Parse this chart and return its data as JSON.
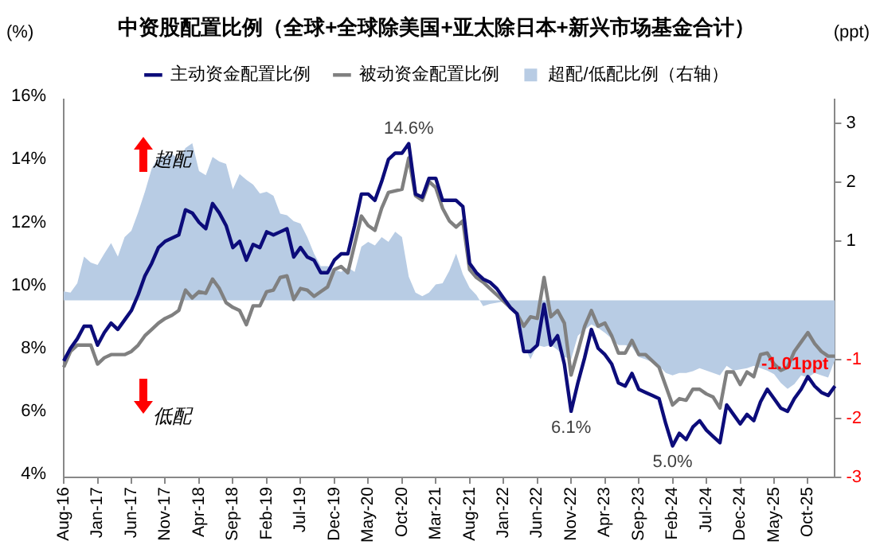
{
  "chart_data": {
    "type": "line",
    "title": "中资股配置比例（全球+全球除美国+亚太除日本+新兴市场基金合计）",
    "ylabel": "(%)",
    "y2label": "(ppt)",
    "categories": [
      "Aug-16",
      null,
      null,
      null,
      null,
      "Jan-17",
      null,
      null,
      null,
      null,
      "Jun-17",
      null,
      null,
      null,
      null,
      "Nov-17",
      null,
      null,
      null,
      null,
      "Apr-18",
      null,
      null,
      null,
      null,
      "Sep-18",
      null,
      null,
      null,
      null,
      "Feb-19",
      null,
      null,
      null,
      null,
      "Jul-19",
      null,
      null,
      null,
      null,
      "Dec-19",
      null,
      null,
      null,
      null,
      "May-20",
      null,
      null,
      null,
      null,
      "Oct-20",
      null,
      null,
      null,
      null,
      "Mar-21",
      null,
      null,
      null,
      null,
      "Aug-21",
      null,
      null,
      null,
      null,
      "Jan-22",
      null,
      null,
      null,
      null,
      "Jun-22",
      null,
      null,
      null,
      null,
      "Nov-22",
      null,
      null,
      null,
      null,
      "Apr-23",
      null,
      null,
      null,
      null,
      "Sep-23",
      null,
      null,
      null,
      null,
      "Feb-24",
      null,
      null,
      null,
      null,
      "Jul-24",
      null,
      null,
      null,
      null,
      "Dec-24",
      null,
      null,
      null,
      null,
      "May-25",
      null,
      null,
      null,
      null,
      "Oct-25",
      null,
      null,
      null,
      null
    ],
    "series": [
      {
        "name": "超配/低配比例（右轴）",
        "type": "area",
        "axis": "y2",
        "color": "#b8cce4",
        "values": [
          0.15,
          0.13,
          0.29,
          0.74,
          0.64,
          0.6,
          0.79,
          0.97,
          0.74,
          1.07,
          1.18,
          1.49,
          1.84,
          2.23,
          2.43,
          2.45,
          2.48,
          2.39,
          2.58,
          2.66,
          2.19,
          2.12,
          2.43,
          2.35,
          2.31,
          1.88,
          2.14,
          2.04,
          1.96,
          1.81,
          1.84,
          1.77,
          1.47,
          1.44,
          1.34,
          1.3,
          1.07,
          0.79,
          0.58,
          0.58,
          0.52,
          0.48,
          0.56,
          0.48,
          0.91,
          0.99,
          0.93,
          1.07,
          0.99,
          1.16,
          1.07,
          0.4,
          0.13,
          0.07,
          0.13,
          0.27,
          0.29,
          0.5,
          0.79,
          0.44,
          0.21,
          0.09,
          -0.1,
          -0.06,
          -0.04,
          -0.02,
          -0.1,
          -0.18,
          -0.76,
          -1.0,
          -0.76,
          -0.79,
          -0.76,
          -0.84,
          -0.96,
          -1.0,
          -0.6,
          -0.5,
          -0.41,
          -0.47,
          -0.55,
          -0.65,
          -0.76,
          -0.76,
          -0.79,
          -0.96,
          -1.0,
          -1.05,
          -1.11,
          -1.23,
          -1.27,
          -1.23,
          -1.23,
          -1.2,
          -1.15,
          -1.19,
          -1.23,
          -1.27,
          -1.11,
          -1.19,
          -1.17,
          -1.15,
          -1.11,
          -1.15,
          -1.19,
          -1.25,
          -1.4,
          -1.5,
          -1.42,
          -1.27,
          -1.31,
          -1.23,
          -1.27,
          -1.31,
          -1.01
        ],
        "value_labels": [
          null,
          null,
          null,
          null,
          null,
          null,
          null,
          null,
          null,
          null,
          null,
          null,
          null,
          null,
          null,
          null,
          null,
          null,
          null,
          null,
          null,
          null,
          null,
          null,
          null,
          null,
          null,
          null,
          null,
          null,
          null,
          null,
          null,
          null,
          null,
          null,
          null,
          null,
          null,
          null,
          null,
          null,
          null,
          null,
          null,
          null,
          null,
          null,
          null,
          null,
          null,
          null,
          null,
          null,
          null,
          null,
          null,
          null,
          null,
          null,
          null,
          null,
          null,
          null,
          null,
          null,
          null,
          null,
          null,
          null,
          null,
          null,
          null,
          null,
          null,
          null,
          null,
          null,
          null,
          null,
          null,
          null,
          null,
          null,
          null,
          null,
          null,
          null,
          null,
          null,
          null,
          null,
          null,
          null,
          null,
          null,
          null,
          null,
          null,
          null,
          null,
          null,
          null,
          null,
          null,
          null,
          null,
          null,
          null,
          null,
          null,
          null,
          null,
          null,
          "-1.01ppt"
        ]
      },
      {
        "name": "主动资金配置比例",
        "type": "line",
        "color": "#0c0c7a",
        "values": [
          7.7,
          8.1,
          8.4,
          8.8,
          8.8,
          8.2,
          8.6,
          8.9,
          8.7,
          9.0,
          9.3,
          9.8,
          10.4,
          10.8,
          11.3,
          11.5,
          11.6,
          11.7,
          12.5,
          12.4,
          12.1,
          11.9,
          12.7,
          12.4,
          12.0,
          11.3,
          11.5,
          10.9,
          11.4,
          11.3,
          11.8,
          11.7,
          11.8,
          11.9,
          11.0,
          11.3,
          11.0,
          10.9,
          10.5,
          10.5,
          10.9,
          11.1,
          11.1,
          12.0,
          13.0,
          13.0,
          12.8,
          13.4,
          14.1,
          14.3,
          14.3,
          14.6,
          13.0,
          12.9,
          13.5,
          13.5,
          12.8,
          12.8,
          12.8,
          12.6,
          10.8,
          10.5,
          10.3,
          10.2,
          10.0,
          9.7,
          9.4,
          9.2,
          8.0,
          8.0,
          8.2,
          9.5,
          8.2,
          8.5,
          7.6,
          6.1,
          7.0,
          7.8,
          8.7,
          8.1,
          7.9,
          7.6,
          7.0,
          6.9,
          7.3,
          6.8,
          6.7,
          6.6,
          6.5,
          5.7,
          5.0,
          5.4,
          5.2,
          5.6,
          5.8,
          5.5,
          5.3,
          5.1,
          6.3,
          6.0,
          5.7,
          6.0,
          5.8,
          6.4,
          6.8,
          6.5,
          6.2,
          6.1,
          6.5,
          6.8,
          7.2,
          6.9,
          6.7,
          6.6,
          6.9
        ],
        "value_labels": [
          null,
          null,
          null,
          null,
          null,
          null,
          null,
          null,
          null,
          null,
          null,
          null,
          null,
          null,
          null,
          null,
          null,
          null,
          null,
          null,
          null,
          null,
          null,
          null,
          null,
          null,
          null,
          null,
          null,
          null,
          null,
          null,
          null,
          null,
          null,
          null,
          null,
          null,
          null,
          null,
          null,
          null,
          null,
          null,
          null,
          null,
          null,
          null,
          null,
          null,
          null,
          "14.6%",
          null,
          null,
          null,
          null,
          null,
          null,
          null,
          null,
          null,
          null,
          null,
          null,
          null,
          null,
          null,
          null,
          null,
          null,
          null,
          null,
          null,
          null,
          null,
          "6.1%",
          null,
          null,
          null,
          null,
          null,
          null,
          null,
          null,
          null,
          null,
          null,
          null,
          null,
          null,
          "5.0%",
          null,
          null,
          null,
          null,
          null,
          null,
          null,
          null,
          null,
          null,
          null,
          null,
          null,
          null,
          null,
          null,
          null,
          null,
          null,
          null,
          null,
          null,
          null,
          null
        ]
      },
      {
        "name": "被动资金配置比例",
        "type": "line",
        "color": "#808080",
        "values": [
          7.5,
          8.0,
          8.2,
          8.2,
          8.2,
          7.6,
          7.8,
          7.9,
          7.9,
          7.9,
          8.0,
          8.2,
          8.5,
          8.7,
          8.9,
          9.05,
          9.15,
          9.3,
          9.95,
          9.7,
          9.9,
          9.85,
          10.3,
          10.0,
          9.55,
          9.4,
          9.3,
          8.85,
          9.45,
          9.45,
          9.9,
          9.95,
          10.35,
          10.4,
          9.65,
          10.0,
          9.95,
          9.75,
          9.9,
          10.05,
          10.6,
          10.7,
          10.5,
          11.4,
          12.3,
          12.0,
          11.85,
          12.55,
          13.05,
          13.1,
          13.15,
          14.15,
          12.95,
          12.8,
          13.4,
          13.2,
          12.55,
          12.15,
          11.95,
          12.15,
          10.6,
          10.35,
          10.2,
          10.0,
          9.8,
          9.6,
          9.4,
          9.2,
          8.8,
          9.1,
          9.05,
          10.35,
          9.1,
          9.3,
          8.9,
          7.25,
          8.0,
          8.8,
          9.3,
          8.8,
          8.9,
          8.5,
          7.95,
          7.95,
          8.35,
          7.9,
          7.9,
          7.7,
          7.5,
          6.9,
          6.3,
          6.5,
          6.45,
          6.8,
          6.8,
          6.65,
          6.55,
          6.2,
          7.35,
          7.35,
          6.95,
          7.35,
          7.2,
          7.9,
          7.95,
          7.6,
          7.4,
          7.5,
          8.0,
          8.3,
          8.6,
          8.25,
          8.0,
          7.85,
          7.85
        ]
      }
    ],
    "ylim": [
      4,
      16
    ],
    "yticks": [
      {
        "value": 4,
        "label": "4%"
      },
      {
        "value": 6,
        "label": "6%"
      },
      {
        "value": 8,
        "label": "8%"
      },
      {
        "value": 10,
        "label": "10%"
      },
      {
        "value": 12,
        "label": "12%"
      },
      {
        "value": 14,
        "label": "14%"
      },
      {
        "value": 16,
        "label": "16%"
      }
    ],
    "y2lim": [
      -3,
      3.4
    ],
    "y2ticks": [
      -3,
      -2,
      -1,
      1,
      2,
      3
    ],
    "annotations": [
      "超配",
      "低配"
    ],
    "legend": "top"
  }
}
